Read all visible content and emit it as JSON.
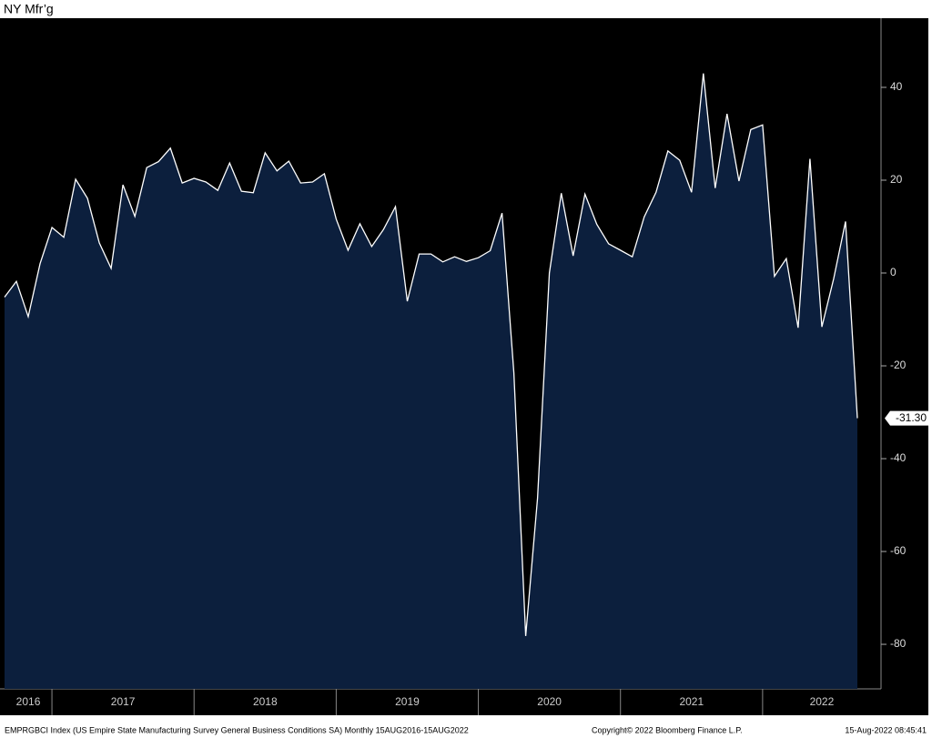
{
  "chart_data": {
    "type": "area",
    "title": "NY Mfr’g",
    "x_labels": [
      "2016",
      "2017",
      "2018",
      "2019",
      "2020",
      "2021",
      "2022"
    ],
    "series": [
      {
        "name": "EMPRGBCI Index",
        "color": "#ffffff",
        "fill": "#0c1f3d",
        "values": [
          -5.2,
          -1.8,
          -9.4,
          2.0,
          9.8,
          7.7,
          20.2,
          16.1,
          6.5,
          1.0,
          19.0,
          12.2,
          22.7,
          24.0,
          26.9,
          19.4,
          20.4,
          19.6,
          17.8,
          23.7,
          17.6,
          17.3,
          25.9,
          22.0,
          24.1,
          19.4,
          19.6,
          21.4,
          11.6,
          4.9,
          10.6,
          5.7,
          9.4,
          14.3,
          -6.1,
          4.1,
          4.1,
          2.4,
          3.5,
          2.5,
          3.3,
          4.8,
          12.9,
          -21.5,
          -78.2,
          -48.5,
          0,
          17.2,
          3.7,
          17.0,
          10.5,
          6.3,
          4.9,
          3.5,
          12.1,
          17.4,
          26.3,
          24.3,
          17.4,
          43.0,
          18.3,
          34.3,
          19.8,
          30.9,
          31.9,
          -0.7,
          3.1,
          -11.8,
          24.6,
          -11.6,
          -1.2,
          11.1,
          -31.3
        ],
        "value_labels": [
          null,
          null,
          null,
          null,
          null,
          null,
          null,
          null,
          null,
          null,
          null,
          null,
          null,
          null,
          null,
          null,
          null,
          null,
          null,
          null,
          null,
          null,
          null,
          null,
          null,
          null,
          null,
          null,
          null,
          null,
          null,
          null,
          null,
          null,
          null,
          null,
          null,
          null,
          null,
          null,
          null,
          null,
          null,
          null,
          null,
          null,
          null,
          null,
          null,
          null,
          null,
          null,
          null,
          null,
          null,
          null,
          null,
          null,
          null,
          null,
          null,
          null,
          null,
          null,
          null,
          null,
          null,
          null,
          null,
          null,
          null,
          null,
          "-31.30"
        ]
      }
    ],
    "ylim": [
      -89.6,
      54.9
    ],
    "yticks": [
      40,
      20,
      0,
      -20,
      -40,
      -60,
      -80
    ],
    "footer": {
      "description": "EMPRGBCI Index (US Empire State Manufacturing Survey General Business Conditions SA)  Monthly 15AUG2016-15AUG2022",
      "copyright": "Copyright© 2022 Bloomberg Finance L.P.",
      "timestamp": "15-Aug-2022 08:45:41"
    }
  }
}
